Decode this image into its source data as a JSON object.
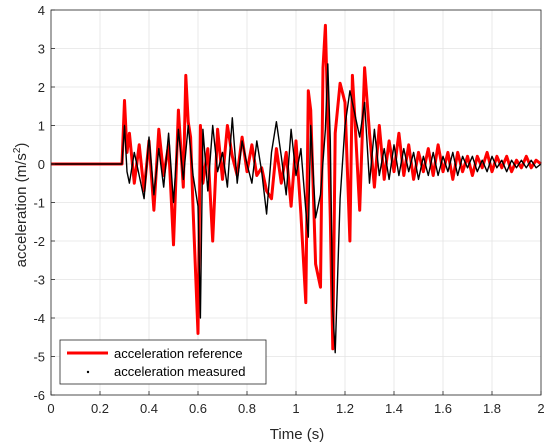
{
  "chart_data": {
    "type": "line",
    "xlabel": "Time (s)",
    "ylabel_main": "acceleration (m/s",
    "ylabel_sup": "2",
    "ylabel_close": ")",
    "xlim": [
      0,
      2
    ],
    "ylim": [
      -6,
      4
    ],
    "xticks": [
      0,
      0.2,
      0.4,
      0.6,
      0.8,
      1,
      1.2,
      1.4,
      1.6,
      1.8,
      2
    ],
    "xtick_labels": [
      "0",
      "0.2",
      "0.4",
      "0.6",
      "0.8",
      "1",
      "1.2",
      "1.4",
      "1.6",
      "1.8",
      "2"
    ],
    "yticks": [
      -6,
      -5,
      -4,
      -3,
      -2,
      -1,
      0,
      1,
      2,
      3,
      4
    ],
    "ytick_labels": [
      "-6",
      "-5",
      "-4",
      "-3",
      "-2",
      "-1",
      "0",
      "1",
      "2",
      "3",
      "4"
    ],
    "grid": true,
    "legend_position": "bottom-left",
    "series": [
      {
        "name": "acceleration reference",
        "color": "#ff0000",
        "style": "thick-line",
        "x": [
          0,
          0.29,
          0.3,
          0.31,
          0.32,
          0.34,
          0.36,
          0.38,
          0.4,
          0.42,
          0.44,
          0.46,
          0.48,
          0.5,
          0.52,
          0.54,
          0.55,
          0.56,
          0.57,
          0.58,
          0.6,
          0.61,
          0.62,
          0.64,
          0.66,
          0.68,
          0.7,
          0.72,
          0.74,
          0.76,
          0.78,
          0.8,
          0.82,
          0.84,
          0.86,
          0.88,
          0.9,
          0.92,
          0.94,
          0.96,
          0.98,
          1.0,
          1.02,
          1.04,
          1.05,
          1.06,
          1.08,
          1.1,
          1.11,
          1.12,
          1.13,
          1.14,
          1.15,
          1.16,
          1.18,
          1.2,
          1.22,
          1.23,
          1.24,
          1.26,
          1.28,
          1.3,
          1.32,
          1.34,
          1.36,
          1.38,
          1.4,
          1.42,
          1.44,
          1.46,
          1.48,
          1.5,
          1.52,
          1.54,
          1.56,
          1.58,
          1.6,
          1.62,
          1.64,
          1.66,
          1.68,
          1.7,
          1.72,
          1.74,
          1.76,
          1.78,
          1.8,
          1.82,
          1.84,
          1.86,
          1.88,
          1.9,
          1.92,
          1.94,
          1.96,
          1.98,
          2.0
        ],
        "y": [
          0,
          0,
          1.65,
          0.3,
          0.8,
          -0.5,
          0.5,
          -0.7,
          0.6,
          -1.2,
          0.9,
          -0.3,
          0.5,
          -2.1,
          1.4,
          -0.6,
          2.3,
          1.1,
          0.7,
          -1.2,
          -4.4,
          1.0,
          -0.5,
          0.4,
          -2.0,
          0.9,
          -0.4,
          1.0,
          0.2,
          -0.3,
          0.7,
          -0.2,
          0.5,
          -0.3,
          -0.1,
          -0.7,
          -0.9,
          0.4,
          -0.5,
          0.3,
          -1.1,
          0.6,
          -1.3,
          -3.6,
          1.9,
          1.4,
          -2.6,
          -3.2,
          2.5,
          3.6,
          1.2,
          -1.4,
          -4.8,
          0.8,
          2.1,
          1.6,
          -2.0,
          2.3,
          1.2,
          -1.2,
          2.5,
          0.8,
          -0.6,
          1.0,
          -0.4,
          0.6,
          -0.2,
          0.8,
          -0.3,
          0.5,
          -0.4,
          0.3,
          -0.2,
          0.4,
          -0.3,
          0.5,
          -0.2,
          0.3,
          -0.4,
          0.3,
          -0.2,
          0.2,
          -0.3,
          0.2,
          -0.1,
          0.3,
          -0.2,
          0.2,
          -0.1,
          0.2,
          -0.2,
          0.1,
          -0.1,
          0.2,
          -0.1,
          0.1,
          0.0
        ]
      },
      {
        "name": "acceleration measured",
        "color": "#000000",
        "style": "thin-line",
        "x": [
          0,
          0.29,
          0.3,
          0.31,
          0.32,
          0.34,
          0.36,
          0.38,
          0.4,
          0.42,
          0.44,
          0.46,
          0.48,
          0.5,
          0.52,
          0.54,
          0.56,
          0.58,
          0.6,
          0.61,
          0.62,
          0.64,
          0.66,
          0.68,
          0.7,
          0.72,
          0.74,
          0.76,
          0.78,
          0.8,
          0.82,
          0.84,
          0.86,
          0.88,
          0.9,
          0.92,
          0.94,
          0.96,
          0.98,
          1.0,
          1.02,
          1.04,
          1.05,
          1.06,
          1.08,
          1.1,
          1.12,
          1.13,
          1.14,
          1.15,
          1.16,
          1.18,
          1.2,
          1.22,
          1.24,
          1.26,
          1.28,
          1.3,
          1.32,
          1.34,
          1.36,
          1.38,
          1.4,
          1.42,
          1.44,
          1.46,
          1.48,
          1.5,
          1.52,
          1.54,
          1.56,
          1.58,
          1.6,
          1.62,
          1.64,
          1.66,
          1.68,
          1.7,
          1.72,
          1.74,
          1.76,
          1.78,
          1.8,
          1.82,
          1.84,
          1.86,
          1.88,
          1.9,
          1.92,
          1.94,
          1.96,
          1.98,
          2.0
        ],
        "y": [
          0,
          0,
          1.0,
          -0.2,
          -0.5,
          0.3,
          -0.3,
          -0.9,
          0.7,
          -0.8,
          0.4,
          -0.6,
          0.8,
          -1.0,
          0.9,
          -0.4,
          1.0,
          -0.3,
          -1.1,
          -4.0,
          0.9,
          -0.7,
          1.0,
          -0.2,
          0.3,
          -0.6,
          1.2,
          -0.5,
          0.6,
          0.0,
          -0.5,
          0.6,
          -0.2,
          -1.3,
          0.3,
          1.1,
          0.2,
          -0.8,
          0.9,
          -0.3,
          0.4,
          -1.2,
          -1.9,
          1.0,
          -1.4,
          -0.8,
          0.9,
          2.6,
          0.6,
          -3.8,
          -4.9,
          -0.9,
          1.0,
          1.9,
          1.3,
          0.7,
          1.6,
          -0.5,
          0.9,
          -0.3,
          0.4,
          -0.4,
          0.5,
          -0.3,
          0.4,
          -0.2,
          0.3,
          -0.4,
          0.2,
          -0.3,
          0.3,
          -0.3,
          0.2,
          -0.2,
          0.3,
          -0.3,
          0.2,
          -0.1,
          0.2,
          -0.2,
          0.1,
          -0.2,
          0.2,
          -0.1,
          0.1,
          -0.2,
          0.1,
          -0.1,
          0.1,
          -0.1,
          0.1,
          -0.1,
          0.0
        ]
      }
    ]
  }
}
